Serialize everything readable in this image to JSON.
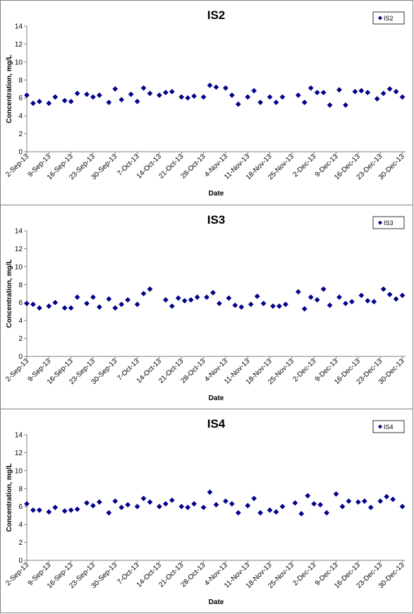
{
  "colors": {
    "marker": "#00008b",
    "axis": "#808080",
    "plot_bg": "#ffffff"
  },
  "chart_data": [
    {
      "type": "scatter",
      "title": "IS2",
      "xlabel": "Date",
      "ylabel": "Concentration, mg/L",
      "xlim": [
        "2013-09-02",
        "2013-12-31"
      ],
      "ylim": [
        0,
        14
      ],
      "y_ticks": [
        "0",
        "2",
        "4",
        "6",
        "8",
        "10",
        "12",
        "14"
      ],
      "x_ticks": [
        "2-Sep-13",
        "9-Sep-13",
        "16-Sep-13",
        "23-Sep-13",
        "30-Sep-13",
        "7-Oct-13",
        "14-Oct-13",
        "21-Oct-13",
        "28-Oct-13",
        "4-Nov-13",
        "11-Nov-13",
        "18-Nov-13",
        "25-Nov-13",
        "2-Dec-13",
        "9-Dec-13",
        "16-Dec-13",
        "23-Dec-13",
        "30-Dec-13"
      ],
      "x_tick_dates": [
        "2013-09-02",
        "2013-09-09",
        "2013-09-16",
        "2013-09-23",
        "2013-09-30",
        "2013-10-07",
        "2013-10-14",
        "2013-10-21",
        "2013-10-28",
        "2013-11-04",
        "2013-11-11",
        "2013-11-18",
        "2013-11-25",
        "2013-12-02",
        "2013-12-09",
        "2013-12-16",
        "2013-12-23",
        "2013-12-30"
      ],
      "grid": false,
      "legend_position": "top-right",
      "series": [
        {
          "name": "IS2",
          "x": [
            "2013-09-02",
            "2013-09-04",
            "2013-09-06",
            "2013-09-09",
            "2013-09-11",
            "2013-09-14",
            "2013-09-16",
            "2013-09-18",
            "2013-09-21",
            "2013-09-23",
            "2013-09-25",
            "2013-09-28",
            "2013-09-30",
            "2013-10-02",
            "2013-10-05",
            "2013-10-07",
            "2013-10-09",
            "2013-10-11",
            "2013-10-14",
            "2013-10-16",
            "2013-10-18",
            "2013-10-21",
            "2013-10-23",
            "2013-10-25",
            "2013-10-28",
            "2013-10-30",
            "2013-11-01",
            "2013-11-04",
            "2013-11-06",
            "2013-11-08",
            "2013-11-11",
            "2013-11-13",
            "2013-11-15",
            "2013-11-18",
            "2013-11-20",
            "2013-11-22",
            "2013-11-27",
            "2013-11-29",
            "2013-12-01",
            "2013-12-03",
            "2013-12-05",
            "2013-12-07",
            "2013-12-10",
            "2013-12-12",
            "2013-12-15",
            "2013-12-17",
            "2013-12-19",
            "2013-12-22",
            "2013-12-24",
            "2013-12-26",
            "2013-12-28",
            "2013-12-30"
          ],
          "y": [
            6.3,
            5.4,
            5.6,
            5.4,
            6.1,
            5.7,
            5.6,
            6.5,
            6.4,
            6.1,
            6.3,
            5.5,
            7.0,
            5.8,
            6.4,
            5.6,
            7.1,
            6.5,
            6.3,
            6.6,
            6.7,
            6.1,
            6.0,
            6.2,
            6.1,
            7.4,
            7.2,
            7.1,
            6.3,
            5.3,
            6.1,
            6.8,
            5.5,
            6.1,
            5.5,
            6.1,
            6.3,
            5.5,
            7.1,
            6.6,
            6.6,
            5.2,
            6.9,
            5.2,
            6.7,
            6.8,
            6.6,
            5.9,
            6.5,
            7.0,
            6.7,
            6.1
          ]
        }
      ]
    },
    {
      "type": "scatter",
      "title": "IS3",
      "xlabel": "Date",
      "ylabel": "Concentration, mg/L",
      "xlim": [
        "2013-09-02",
        "2013-12-31"
      ],
      "ylim": [
        0,
        14
      ],
      "y_ticks": [
        "0",
        "2",
        "4",
        "6",
        "8",
        "10",
        "12",
        "14"
      ],
      "x_ticks": [
        "2-Sep-13",
        "9-Sep-13",
        "16-Sep-13",
        "23-Sep-13",
        "30-Sep-13",
        "7-Oct-13",
        "14-Oct-13",
        "21-Oct-13",
        "28-Oct-13",
        "4-Nov-13",
        "11-Nov-13",
        "18-Nov-13",
        "25-Nov-13",
        "2-Dec-13",
        "9-Dec-13",
        "16-Dec-13",
        "23-Dec-13",
        "30-Dec-13"
      ],
      "x_tick_dates": [
        "2013-09-02",
        "2013-09-09",
        "2013-09-16",
        "2013-09-23",
        "2013-09-30",
        "2013-10-07",
        "2013-10-14",
        "2013-10-21",
        "2013-10-28",
        "2013-11-04",
        "2013-11-11",
        "2013-11-18",
        "2013-11-25",
        "2013-12-02",
        "2013-12-09",
        "2013-12-16",
        "2013-12-23",
        "2013-12-30"
      ],
      "grid": false,
      "legend_position": "top-right",
      "series": [
        {
          "name": "IS3",
          "x": [
            "2013-09-02",
            "2013-09-04",
            "2013-09-06",
            "2013-09-09",
            "2013-09-11",
            "2013-09-14",
            "2013-09-16",
            "2013-09-18",
            "2013-09-21",
            "2013-09-23",
            "2013-09-25",
            "2013-09-28",
            "2013-09-30",
            "2013-10-02",
            "2013-10-04",
            "2013-10-07",
            "2013-10-09",
            "2013-10-11",
            "2013-10-16",
            "2013-10-18",
            "2013-10-20",
            "2013-10-22",
            "2013-10-24",
            "2013-10-26",
            "2013-10-29",
            "2013-10-31",
            "2013-11-02",
            "2013-11-05",
            "2013-11-07",
            "2013-11-09",
            "2013-11-12",
            "2013-11-14",
            "2013-11-16",
            "2013-11-19",
            "2013-11-21",
            "2013-11-23",
            "2013-11-27",
            "2013-11-29",
            "2013-12-01",
            "2013-12-03",
            "2013-12-05",
            "2013-12-07",
            "2013-12-10",
            "2013-12-12",
            "2013-12-14",
            "2013-12-17",
            "2013-12-19",
            "2013-12-21",
            "2013-12-24",
            "2013-12-26",
            "2013-12-28",
            "2013-12-30"
          ],
          "y": [
            5.9,
            5.8,
            5.4,
            5.6,
            6.0,
            5.4,
            5.4,
            6.6,
            5.9,
            6.6,
            5.5,
            6.4,
            5.4,
            5.8,
            6.3,
            5.8,
            7.0,
            7.5,
            6.3,
            5.6,
            6.5,
            6.2,
            6.3,
            6.6,
            6.6,
            7.1,
            5.9,
            6.5,
            5.7,
            5.5,
            5.8,
            6.7,
            5.9,
            5.6,
            5.6,
            5.8,
            7.2,
            5.3,
            6.6,
            6.3,
            7.5,
            5.7,
            6.6,
            5.9,
            6.1,
            6.8,
            6.2,
            6.1,
            7.5,
            6.9,
            6.4,
            6.8
          ]
        }
      ]
    },
    {
      "type": "scatter",
      "title": "IS4",
      "xlabel": "Date",
      "ylabel": "Concentration, mg/L",
      "xlim": [
        "2013-09-02",
        "2013-12-31"
      ],
      "ylim": [
        0,
        14
      ],
      "y_ticks": [
        "0",
        "2",
        "4",
        "6",
        "8",
        "10",
        "12",
        "14"
      ],
      "x_ticks": [
        "2-Sep-13",
        "9-Sep-13",
        "16-Sep-13",
        "23-Sep-13",
        "30-Sep-13",
        "7-Oct-13",
        "14-Oct-13",
        "21-Oct-13",
        "28-Oct-13",
        "4-Nov-13",
        "11-Nov-13",
        "18-Nov-13",
        "25-Nov-13",
        "2-Dec-13",
        "9-Dec-13",
        "16-Dec-13",
        "23-Dec-13",
        "30-Dec-13"
      ],
      "x_tick_dates": [
        "2013-09-02",
        "2013-09-09",
        "2013-09-16",
        "2013-09-23",
        "2013-09-30",
        "2013-10-07",
        "2013-10-14",
        "2013-10-21",
        "2013-10-28",
        "2013-11-04",
        "2013-11-11",
        "2013-11-18",
        "2013-11-25",
        "2013-12-02",
        "2013-12-09",
        "2013-12-16",
        "2013-12-23",
        "2013-12-30"
      ],
      "grid": false,
      "legend_position": "top-right",
      "series": [
        {
          "name": "IS4",
          "x": [
            "2013-09-02",
            "2013-09-04",
            "2013-09-06",
            "2013-09-09",
            "2013-09-11",
            "2013-09-14",
            "2013-09-16",
            "2013-09-18",
            "2013-09-21",
            "2013-09-23",
            "2013-09-25",
            "2013-09-28",
            "2013-09-30",
            "2013-10-02",
            "2013-10-04",
            "2013-10-07",
            "2013-10-09",
            "2013-10-11",
            "2013-10-14",
            "2013-10-16",
            "2013-10-18",
            "2013-10-21",
            "2013-10-23",
            "2013-10-25",
            "2013-10-28",
            "2013-10-30",
            "2013-11-01",
            "2013-11-04",
            "2013-11-06",
            "2013-11-08",
            "2013-11-11",
            "2013-11-13",
            "2013-11-15",
            "2013-11-18",
            "2013-11-20",
            "2013-11-22",
            "2013-11-26",
            "2013-11-28",
            "2013-11-30",
            "2013-12-02",
            "2013-12-04",
            "2013-12-06",
            "2013-12-09",
            "2013-12-11",
            "2013-12-13",
            "2013-12-16",
            "2013-12-18",
            "2013-12-20",
            "2013-12-23",
            "2013-12-25",
            "2013-12-27",
            "2013-12-30"
          ],
          "y": [
            6.3,
            5.6,
            5.6,
            5.4,
            5.9,
            5.5,
            5.6,
            5.7,
            6.4,
            6.1,
            6.5,
            5.3,
            6.6,
            5.9,
            6.2,
            6.0,
            6.9,
            6.5,
            6.0,
            6.3,
            6.7,
            6.0,
            5.9,
            6.3,
            5.9,
            7.6,
            6.2,
            6.6,
            6.3,
            5.3,
            6.1,
            6.9,
            5.3,
            5.6,
            5.4,
            6.0,
            6.4,
            5.2,
            7.2,
            6.3,
            6.2,
            5.3,
            7.4,
            6.0,
            6.6,
            6.5,
            6.6,
            5.9,
            6.6,
            7.1,
            6.8,
            6.0
          ]
        }
      ]
    }
  ]
}
